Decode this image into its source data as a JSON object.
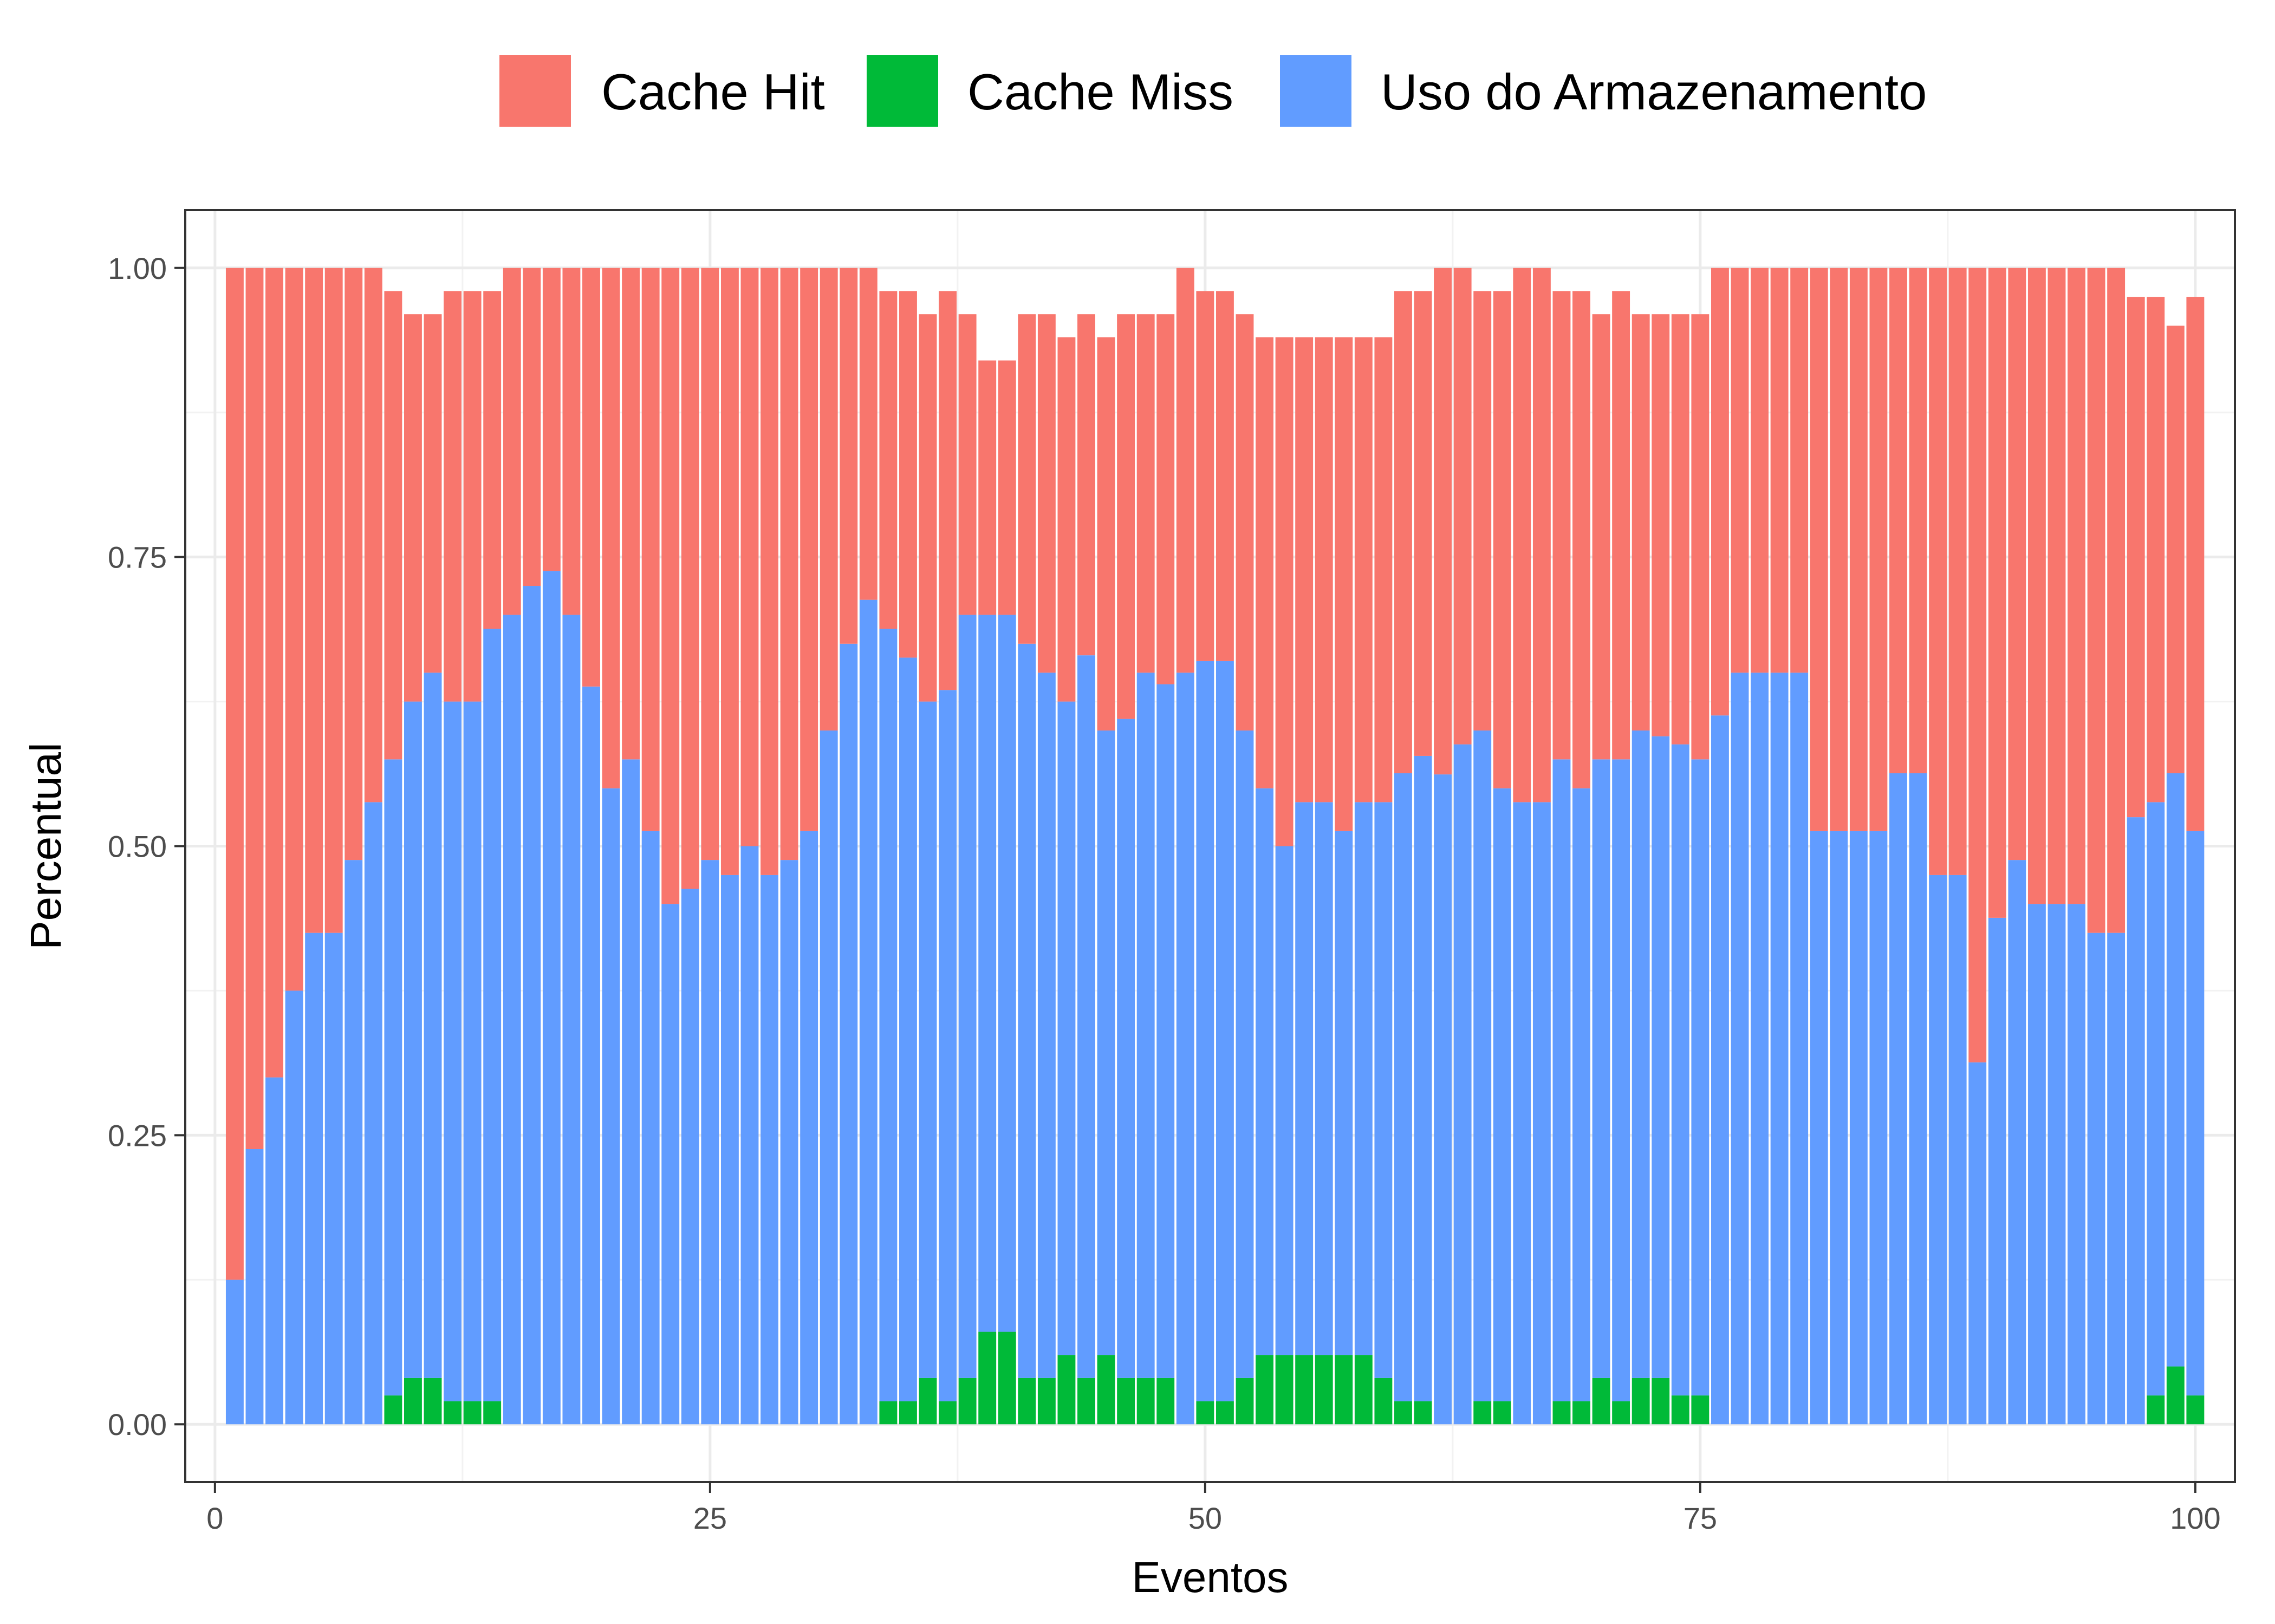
{
  "chart_data": {
    "type": "bar",
    "stacked": true,
    "title": "",
    "xlabel": "Eventos",
    "ylabel": "Percentual",
    "xlim": [
      -1.5,
      102
    ],
    "ylim": [
      -0.05,
      1.05
    ],
    "x_ticks": [
      0,
      25,
      50,
      75,
      100
    ],
    "x_tick_labels": [
      "0",
      "25",
      "50",
      "75",
      "100"
    ],
    "y_ticks": [
      0,
      0.25,
      0.5,
      0.75,
      1.0
    ],
    "y_tick_labels": [
      "0.00",
      "0.25",
      "0.50",
      "0.75",
      "1.00"
    ],
    "grid": true,
    "legend_position": "top",
    "x": [
      1,
      2,
      3,
      4,
      5,
      6,
      7,
      8,
      9,
      10,
      11,
      12,
      13,
      14,
      15,
      16,
      17,
      18,
      19,
      20,
      21,
      22,
      23,
      24,
      25,
      26,
      27,
      28,
      29,
      30,
      31,
      32,
      33,
      34,
      35,
      36,
      37,
      38,
      39,
      40,
      41,
      42,
      43,
      44,
      45,
      46,
      47,
      48,
      49,
      50,
      51,
      52,
      53,
      54,
      55,
      56,
      57,
      58,
      59,
      60,
      61,
      62,
      63,
      64,
      65,
      66,
      67,
      68,
      69,
      70,
      71,
      72,
      73,
      74,
      75,
      76,
      77,
      78,
      79,
      80,
      81,
      82,
      83,
      84,
      85,
      86,
      87,
      88,
      89,
      90,
      91,
      92,
      93,
      94,
      95,
      96,
      97,
      98,
      99,
      100
    ],
    "series": [
      {
        "name": "Cache Miss",
        "color": "#00BA38",
        "values": [
          0,
          0,
          0,
          0,
          0,
          0,
          0,
          0,
          0.025,
          0.04,
          0.04,
          0.02,
          0.02,
          0.02,
          0,
          0,
          0,
          0,
          0,
          0,
          0,
          0,
          0,
          0,
          0,
          0,
          0,
          0,
          0,
          0,
          0,
          0,
          0,
          0.02,
          0.02,
          0.04,
          0.02,
          0.04,
          0.08,
          0.08,
          0.04,
          0.04,
          0.06,
          0.04,
          0.06,
          0.04,
          0.04,
          0.04,
          0,
          0.02,
          0.02,
          0.04,
          0.06,
          0.06,
          0.06,
          0.06,
          0.06,
          0.06,
          0.04,
          0.02,
          0.02,
          0,
          0,
          0.02,
          0.02,
          0,
          0,
          0.02,
          0.02,
          0.04,
          0.02,
          0.04,
          0.04,
          0.025,
          0.025,
          0,
          0,
          0,
          0,
          0,
          0,
          0,
          0,
          0,
          0,
          0,
          0,
          0,
          0,
          0,
          0,
          0,
          0,
          0,
          0,
          0,
          0,
          0.025,
          0.05,
          0.025
        ]
      },
      {
        "name": "Uso do Armazenamento",
        "color": "#619CFF",
        "values": [
          0.125,
          0.238,
          0.3,
          0.375,
          0.425,
          0.425,
          0.488,
          0.538,
          0.55,
          0.585,
          0.61,
          0.605,
          0.605,
          0.668,
          0.7,
          0.725,
          0.738,
          0.7,
          0.638,
          0.55,
          0.575,
          0.513,
          0.45,
          0.463,
          0.488,
          0.475,
          0.5,
          0.475,
          0.488,
          0.513,
          0.6,
          0.675,
          0.713,
          0.668,
          0.643,
          0.585,
          0.615,
          0.66,
          0.62,
          0.62,
          0.635,
          0.61,
          0.565,
          0.625,
          0.54,
          0.57,
          0.61,
          0.6,
          0.65,
          0.64,
          0.64,
          0.56,
          0.49,
          0.44,
          0.478,
          0.478,
          0.453,
          0.478,
          0.498,
          0.543,
          0.558,
          0.562,
          0.588,
          0.58,
          0.53,
          0.538,
          0.538,
          0.555,
          0.53,
          0.535,
          0.555,
          0.56,
          0.555,
          0.563,
          0.55,
          0.613,
          0.65,
          0.65,
          0.65,
          0.65,
          0.513,
          0.513,
          0.513,
          0.513,
          0.563,
          0.563,
          0.475,
          0.475,
          0.313,
          0.438,
          0.488,
          0.45,
          0.45,
          0.45,
          0.425,
          0.425,
          0.525,
          0.513,
          0.513,
          0.488
        ]
      },
      {
        "name": "Cache Hit",
        "color": "#F8766D",
        "values": [
          0.875,
          0.762,
          0.7,
          0.625,
          0.575,
          0.575,
          0.512,
          0.462,
          0.405,
          0.335,
          0.31,
          0.355,
          0.355,
          0.292,
          0.3,
          0.275,
          0.262,
          0.3,
          0.362,
          0.45,
          0.425,
          0.487,
          0.55,
          0.537,
          0.512,
          0.525,
          0.5,
          0.525,
          0.512,
          0.487,
          0.4,
          0.325,
          0.287,
          0.292,
          0.317,
          0.335,
          0.345,
          0.26,
          0.22,
          0.22,
          0.285,
          0.31,
          0.315,
          0.295,
          0.34,
          0.35,
          0.31,
          0.32,
          0.35,
          0.32,
          0.32,
          0.36,
          0.39,
          0.44,
          0.402,
          0.402,
          0.427,
          0.402,
          0.402,
          0.417,
          0.402,
          0.438,
          0.412,
          0.38,
          0.43,
          0.462,
          0.462,
          0.405,
          0.43,
          0.385,
          0.405,
          0.36,
          0.365,
          0.372,
          0.385,
          0.387,
          0.35,
          0.35,
          0.35,
          0.35,
          0.487,
          0.487,
          0.487,
          0.487,
          0.437,
          0.437,
          0.525,
          0.525,
          0.687,
          0.562,
          0.512,
          0.55,
          0.55,
          0.55,
          0.575,
          0.575,
          0.45,
          0.437,
          0.387,
          0.462
        ]
      }
    ],
    "legend": [
      {
        "label": "Cache Hit",
        "color": "#F8766D"
      },
      {
        "label": "Cache Miss",
        "color": "#00BA38"
      },
      {
        "label": "Uso do Armazenamento",
        "color": "#619CFF"
      }
    ]
  }
}
